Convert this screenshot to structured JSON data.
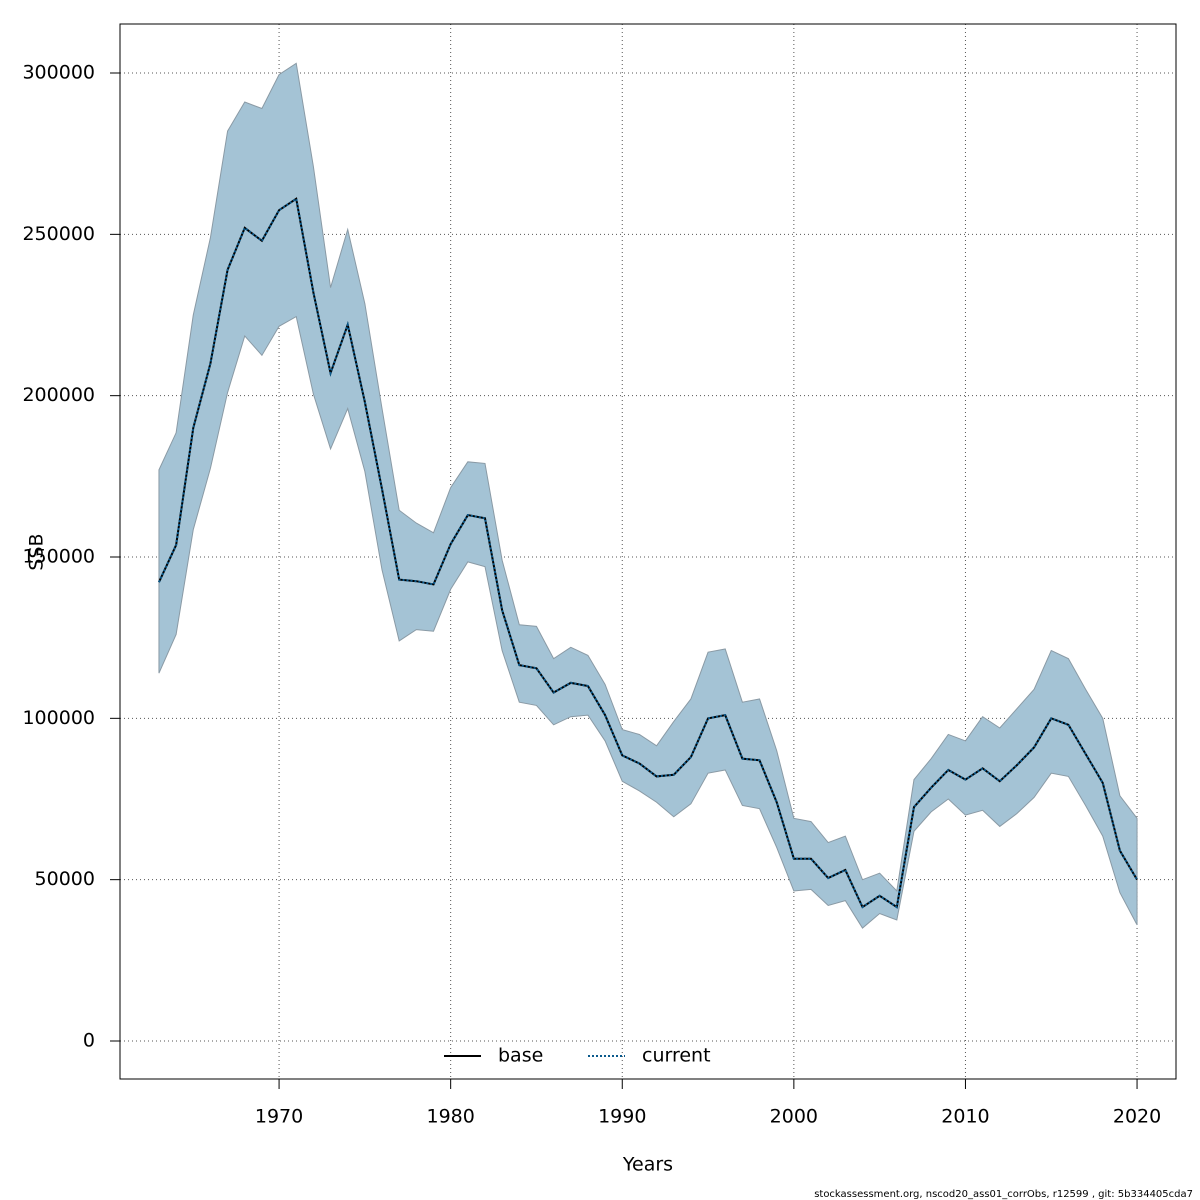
{
  "chart_data": {
    "type": "line",
    "x_label": "Years",
    "y_label": "SSB",
    "footer": "stockassessment.org, nscod20_ass01_corrObs, r12599 , git: 5b334405cda7",
    "x": [
      1963,
      1964,
      1965,
      1966,
      1967,
      1968,
      1969,
      1970,
      1971,
      1972,
      1973,
      1974,
      1975,
      1976,
      1977,
      1978,
      1979,
      1980,
      1981,
      1982,
      1983,
      1984,
      1985,
      1986,
      1987,
      1988,
      1989,
      1990,
      1991,
      1992,
      1993,
      1994,
      1995,
      1996,
      1997,
      1998,
      1999,
      2000,
      2001,
      2002,
      2003,
      2004,
      2005,
      2006,
      2007,
      2008,
      2009,
      2010,
      2011,
      2012,
      2013,
      2014,
      2015,
      2016,
      2017,
      2018,
      2019,
      2020
    ],
    "series": [
      {
        "name": "base",
        "color": "#000000",
        "dash": false,
        "values": [
          142200,
          153700,
          190000,
          210000,
          239000,
          252000,
          248000,
          257500,
          261000,
          232000,
          207000,
          222000,
          198000,
          171000,
          143000,
          142500,
          141500,
          154000,
          163000,
          162000,
          133500,
          116500,
          115500,
          108000,
          111000,
          110000,
          101000,
          88500,
          86000,
          82000,
          82500,
          88000,
          100000,
          101000,
          87500,
          87000,
          74000,
          56500,
          56500,
          50500,
          53000,
          41500,
          45000,
          41500,
          72500,
          78500,
          84000,
          81000,
          84500,
          80500,
          85500,
          91000,
          100000,
          98000,
          89000,
          80000,
          59000,
          50000
        ]
      },
      {
        "name": "current",
        "color": "#0b5a8c",
        "dash": true,
        "values": [
          142200,
          153700,
          190000,
          210000,
          239000,
          252000,
          248000,
          257500,
          261000,
          232000,
          207000,
          222000,
          198000,
          171000,
          143000,
          142500,
          141500,
          154000,
          163000,
          162000,
          133500,
          116500,
          115500,
          108000,
          111000,
          110000,
          101000,
          88500,
          86000,
          82000,
          82500,
          88000,
          100000,
          101000,
          87500,
          87000,
          74000,
          56500,
          56500,
          50500,
          53000,
          41500,
          45000,
          41500,
          72500,
          78500,
          84000,
          81000,
          84500,
          80500,
          85500,
          91000,
          100000,
          98000,
          89000,
          80000,
          59000,
          50000
        ]
      }
    ],
    "band": {
      "color": "#a4c3d5",
      "upper": [
        177000,
        188500,
        225000,
        249000,
        282000,
        291000,
        289000,
        299500,
        303000,
        271000,
        233500,
        251500,
        228500,
        196000,
        164500,
        160500,
        157500,
        171500,
        179500,
        179000,
        149000,
        129000,
        128500,
        118500,
        122000,
        119500,
        110500,
        96500,
        95000,
        91500,
        99000,
        106000,
        120500,
        121500,
        105000,
        106000,
        90000,
        69000,
        68000,
        61500,
        63500,
        50000,
        52000,
        46500,
        81000,
        87500,
        95000,
        93000,
        100500,
        97000,
        103000,
        109000,
        121000,
        118500,
        109000,
        100000,
        76000,
        69000
      ],
      "lower": [
        114000,
        126000,
        158500,
        177500,
        201000,
        218500,
        212500,
        221500,
        224500,
        200500,
        183500,
        196000,
        176500,
        146000,
        124000,
        127500,
        127000,
        140000,
        148500,
        147000,
        121000,
        105000,
        104000,
        98000,
        100500,
        101000,
        93000,
        80500,
        77500,
        74000,
        69500,
        73500,
        83000,
        84000,
        73000,
        72000,
        60000,
        46500,
        47000,
        42000,
        43500,
        35000,
        39500,
        37500,
        65000,
        71000,
        75000,
        70000,
        71500,
        66500,
        70500,
        75500,
        83000,
        82000,
        73000,
        63500,
        46000,
        36000
      ]
    },
    "xlim": [
      1960.73,
      2022.27
    ],
    "ylim": [
      -11780,
      315190
    ],
    "xticks": [
      1970,
      1980,
      1990,
      2000,
      2010,
      2020
    ],
    "yticks": [
      0,
      50000,
      100000,
      150000,
      200000,
      250000,
      300000
    ],
    "grid": true,
    "legend": "bottom"
  }
}
